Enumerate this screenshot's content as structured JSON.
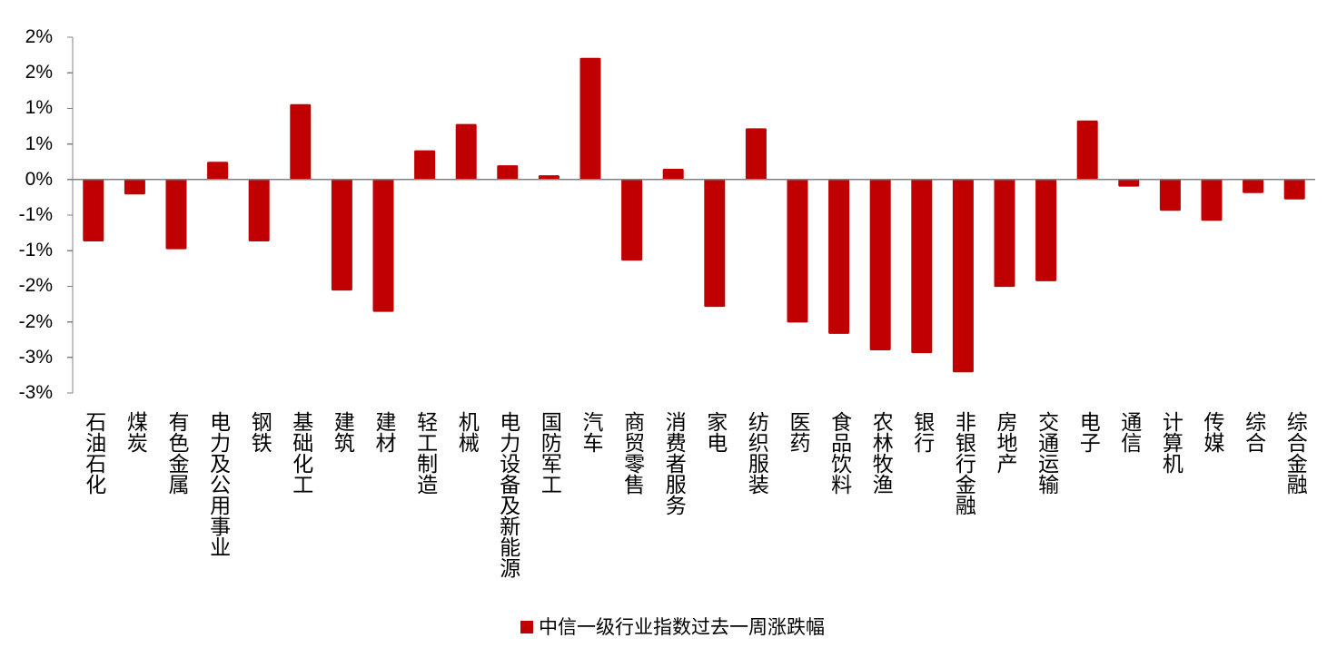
{
  "chart_data": {
    "type": "bar",
    "categories": [
      "石油石化",
      "煤炭",
      "有色金属",
      "电力及公用事业",
      "钢铁",
      "基础化工",
      "建筑",
      "建材",
      "轻工制造",
      "机械",
      "电力设备及新能源",
      "国防军工",
      "汽车",
      "商贸零售",
      "消费者服务",
      "家电",
      "纺织服装",
      "医药",
      "食品饮料",
      "农林牧渔",
      "银行",
      "非银行金融",
      "房地产",
      "交通运输",
      "电子",
      "通信",
      "计算机",
      "传媒",
      "综合",
      "综合金融"
    ],
    "series": [
      {
        "name": "中信一级行业指数过去一周涨跌幅",
        "color": "#C00000",
        "values": [
          -0.87,
          -0.21,
          -0.98,
          0.25,
          -0.87,
          1.06,
          -1.56,
          -1.86,
          0.41,
          0.78,
          0.2,
          0.06,
          1.71,
          -1.14,
          0.15,
          -1.79,
          0.72,
          -2.01,
          -2.17,
          -2.4,
          -2.44,
          -2.71,
          -1.51,
          -1.43,
          0.83,
          -0.1,
          -0.44,
          -0.58,
          -0.19,
          -0.28
        ]
      }
    ],
    "ylim": [
      -3.0,
      2.0
    ],
    "yticks": [
      2.0,
      1.5,
      1.0,
      0.5,
      0,
      -0.5,
      -1.0,
      -1.5,
      -2.0,
      -2.5,
      -3.0
    ],
    "ytick_labels": [
      "2%",
      "2%",
      "1%",
      "1%",
      "0%",
      "-1%",
      "-1%",
      "-2%",
      "-2%",
      "-3%",
      "-3%"
    ],
    "grid": false,
    "legend": "bottom"
  }
}
